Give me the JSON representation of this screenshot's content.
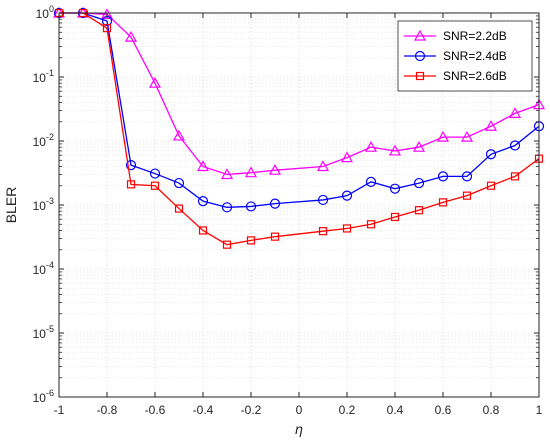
{
  "chart_data": {
    "type": "line",
    "xlabel": "η",
    "ylabel": "BLER",
    "xlim": [
      -1,
      1
    ],
    "ylim": [
      1e-06,
      1
    ],
    "yscale": "log",
    "grid": true,
    "legend_position": "top-right",
    "x_ticks": [
      "-1",
      "-0.8",
      "-0.6",
      "-0.4",
      "-0.2",
      "0",
      "0.2",
      "0.4",
      "0.6",
      "0.8",
      "1"
    ],
    "y_ticks": [
      {
        "base": "10",
        "exp": "0"
      },
      {
        "base": "10",
        "exp": "-1"
      },
      {
        "base": "10",
        "exp": "-2"
      },
      {
        "base": "10",
        "exp": "-3"
      },
      {
        "base": "10",
        "exp": "-4"
      },
      {
        "base": "10",
        "exp": "-5"
      },
      {
        "base": "10",
        "exp": "-6"
      }
    ],
    "series": [
      {
        "name": "SNR=2.2dB",
        "color": "#ff00ff",
        "marker": "triangle",
        "x": [
          -1,
          -0.9,
          -0.8,
          -0.7,
          -0.6,
          -0.5,
          -0.4,
          -0.3,
          -0.2,
          -0.1,
          0.1,
          0.2,
          0.3,
          0.4,
          0.5,
          0.6,
          0.7,
          0.8,
          0.9,
          1
        ],
        "y": [
          1,
          1,
          0.95,
          0.42,
          0.08,
          0.012,
          0.004,
          0.003,
          0.0032,
          0.0035,
          0.004,
          0.0055,
          0.008,
          0.007,
          0.008,
          0.0115,
          0.0115,
          0.017,
          0.027,
          0.037
        ]
      },
      {
        "name": "SNR=2.4dB",
        "color": "#0000ff",
        "marker": "circle",
        "x": [
          -1,
          -0.9,
          -0.8,
          -0.7,
          -0.6,
          -0.5,
          -0.4,
          -0.3,
          -0.2,
          -0.1,
          0.1,
          0.2,
          0.3,
          0.4,
          0.5,
          0.6,
          0.7,
          0.8,
          0.9,
          1
        ],
        "y": [
          1,
          1,
          0.75,
          0.0042,
          0.0031,
          0.0022,
          0.00115,
          0.00092,
          0.00095,
          0.00105,
          0.0012,
          0.0014,
          0.0023,
          0.0018,
          0.0022,
          0.0028,
          0.0028,
          0.0062,
          0.0085,
          0.017
        ]
      },
      {
        "name": "SNR=2.6dB",
        "color": "#ff0000",
        "marker": "square",
        "x": [
          -1,
          -0.9,
          -0.8,
          -0.7,
          -0.6,
          -0.5,
          -0.4,
          -0.3,
          -0.2,
          -0.1,
          0.1,
          0.2,
          0.3,
          0.4,
          0.5,
          0.6,
          0.7,
          0.8,
          0.9,
          1
        ],
        "y": [
          1,
          1,
          0.58,
          0.0021,
          0.002,
          0.00088,
          0.0004,
          0.00024,
          0.00028,
          0.00032,
          0.00039,
          0.00043,
          0.0005,
          0.00065,
          0.00083,
          0.0011,
          0.0014,
          0.002,
          0.0028,
          0.0053
        ]
      }
    ]
  }
}
